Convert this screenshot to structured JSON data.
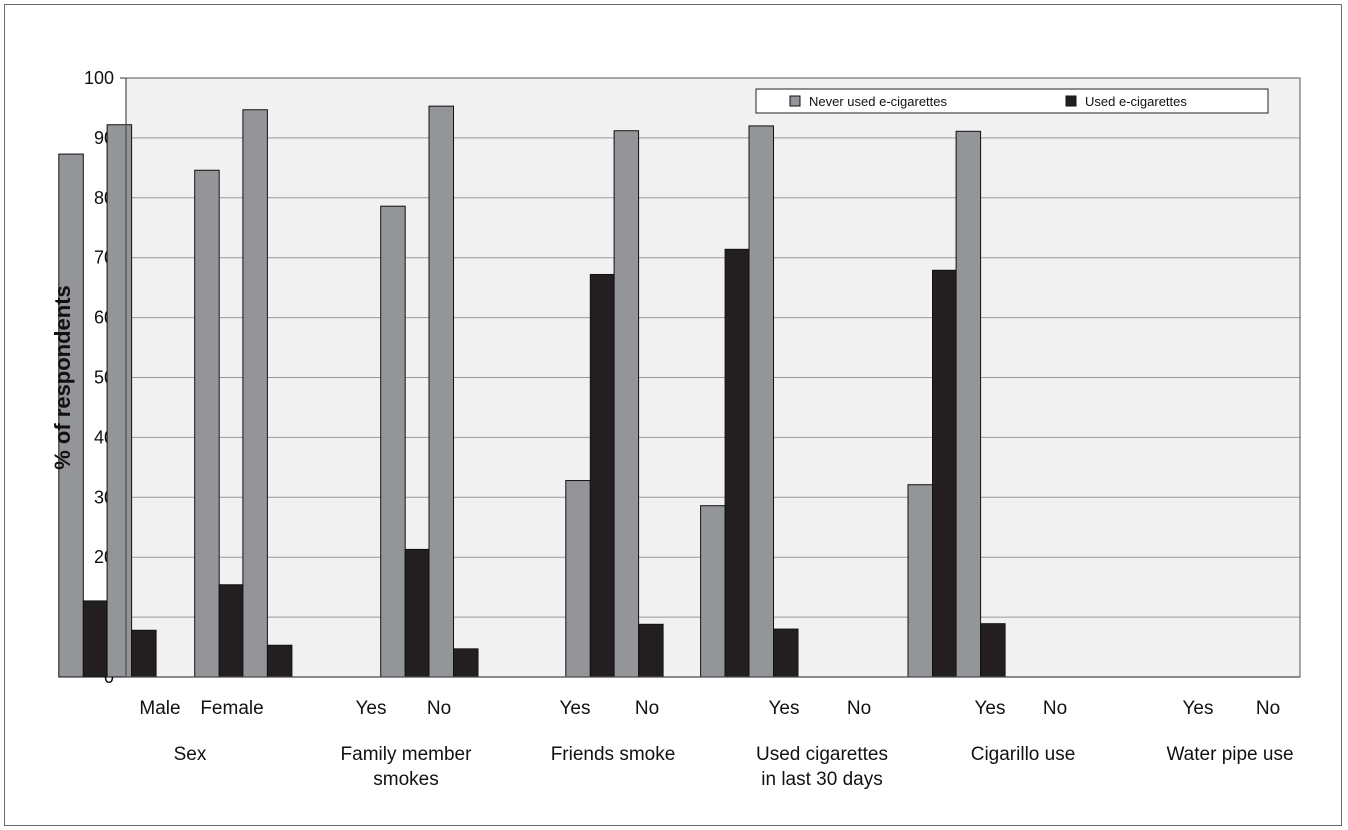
{
  "chart_data": {
    "type": "bar",
    "ylabel": "% of respondents",
    "ylim": [
      0,
      100
    ],
    "yticks": [
      0,
      10,
      20,
      30,
      40,
      50,
      60,
      70,
      80,
      90,
      100
    ],
    "grid": true,
    "legend_position": "top-right",
    "groups": [
      {
        "label": "Sex",
        "label_lines": [
          "Sex"
        ],
        "categories": [
          "Male",
          "Female"
        ]
      },
      {
        "label": "Family member smokes",
        "label_lines": [
          "Family member",
          "smokes"
        ],
        "categories": [
          "Yes",
          "No"
        ]
      },
      {
        "label": "Friends smoke",
        "label_lines": [
          "Friends smoke"
        ],
        "categories": [
          "Yes",
          "No"
        ]
      },
      {
        "label": "Used cigarettes in last 30 days",
        "label_lines": [
          "Used cigarettes",
          "in last 30 days"
        ],
        "categories": [
          "Yes",
          "No"
        ]
      },
      {
        "label": "Cigarillo use",
        "label_lines": [
          "Cigarillo use"
        ],
        "categories": [
          "Yes",
          "No"
        ]
      },
      {
        "label": "Water pipe use",
        "label_lines": [
          "Water pipe use"
        ],
        "categories": [
          "Yes",
          "No"
        ]
      }
    ],
    "categories": [
      "Male",
      "Female",
      "Yes",
      "No",
      "Yes",
      "No",
      "Yes",
      "No",
      "Yes",
      "No",
      "Yes",
      "No"
    ],
    "series": [
      {
        "name": "Never used e-cigarettes",
        "color": "#939598",
        "values": [
          87.3,
          92.2,
          84.6,
          94.7,
          78.6,
          95.3,
          32.8,
          91.2,
          28.6,
          92.0,
          32.1,
          91.1
        ]
      },
      {
        "name": "Used e-cigarettes",
        "color": "#231f20",
        "values": [
          12.7,
          7.8,
          15.4,
          5.3,
          21.3,
          4.7,
          67.2,
          8.8,
          71.4,
          8.0,
          67.9,
          8.9
        ]
      }
    ]
  }
}
